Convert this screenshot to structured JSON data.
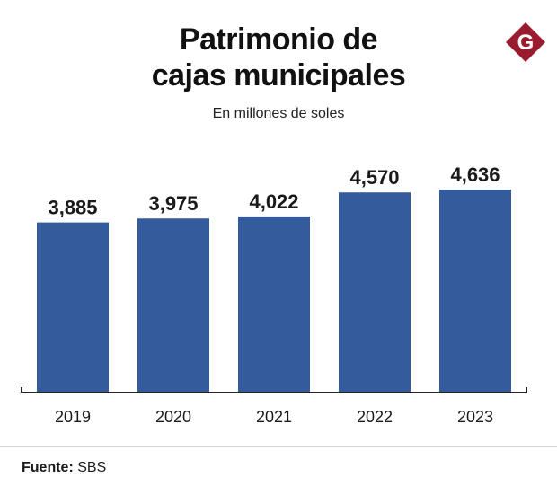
{
  "header": {
    "title_line1": "Patrimonio de",
    "title_line2": "cajas municipales",
    "subtitle": "En millones de soles",
    "logo_letter": "G"
  },
  "footer": {
    "source_label": "Fuente:",
    "source_value": "SBS"
  },
  "colors": {
    "bar": "#345c9c",
    "logo": "#9b1b2e",
    "axis": "#222222",
    "label": "#1a1a1a"
  },
  "chart_data": {
    "type": "bar",
    "title": "Patrimonio de cajas municipales",
    "subtitle": "En millones de soles",
    "categories": [
      "2019",
      "2020",
      "2021",
      "2022",
      "2023"
    ],
    "values": [
      3885,
      3975,
      4022,
      4570,
      4636
    ],
    "value_labels": [
      "3,885",
      "3,975",
      "4,022",
      "4,570",
      "4,636"
    ],
    "xlabel": "",
    "ylabel": "",
    "ylim": [
      0,
      4636
    ],
    "grid": false,
    "legend": "none"
  }
}
